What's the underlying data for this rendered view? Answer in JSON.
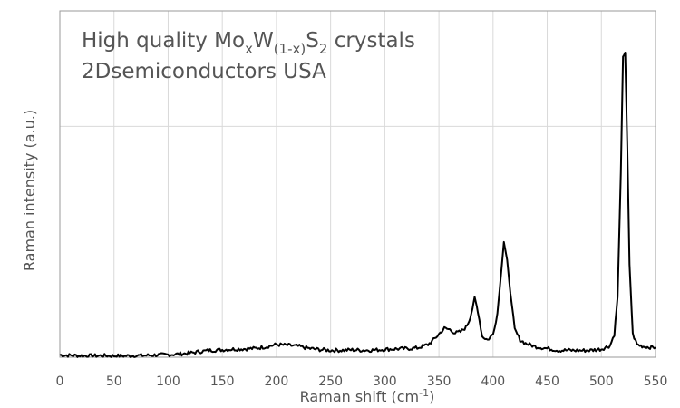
{
  "chart_data": {
    "type": "line",
    "title": {
      "line1": {
        "prefix": "High quality Mo",
        "sub1": "x",
        "mid1": "W",
        "sub2": "(1-x)",
        "mid2": "S",
        "sub3": "2",
        "suffix": " crystals"
      },
      "line2": "2Dsemiconductors USA"
    },
    "xlabel": "Raman shift (cm",
    "xlabel_sup": "-1",
    "xlabel_end": ")",
    "ylabel": "Raman intensity (a.u.)",
    "xlim": [
      0,
      550
    ],
    "ylim": [
      0,
      1.5
    ],
    "x_ticks": [
      "0",
      "50",
      "100",
      "150",
      "200",
      "250",
      "300",
      "350",
      "400",
      "450",
      "500",
      "550"
    ],
    "y_ticks_unlabeled": [
      0,
      1.0
    ],
    "grid": true,
    "line_color": "#000000",
    "series": [
      {
        "points": [
          [
            0,
            0.01
          ],
          [
            10,
            0.008
          ],
          [
            20,
            0.007
          ],
          [
            30,
            0.006
          ],
          [
            40,
            0.007
          ],
          [
            50,
            0.006
          ],
          [
            60,
            0.006
          ],
          [
            70,
            0.007
          ],
          [
            80,
            0.008
          ],
          [
            90,
            0.01
          ],
          [
            100,
            0.011
          ],
          [
            110,
            0.014
          ],
          [
            120,
            0.018
          ],
          [
            130,
            0.025
          ],
          [
            140,
            0.03
          ],
          [
            150,
            0.032
          ],
          [
            160,
            0.035
          ],
          [
            170,
            0.036
          ],
          [
            180,
            0.038
          ],
          [
            190,
            0.045
          ],
          [
            200,
            0.055
          ],
          [
            210,
            0.052
          ],
          [
            220,
            0.048
          ],
          [
            230,
            0.038
          ],
          [
            240,
            0.033
          ],
          [
            250,
            0.03
          ],
          [
            260,
            0.03
          ],
          [
            270,
            0.032
          ],
          [
            280,
            0.03
          ],
          [
            290,
            0.031
          ],
          [
            300,
            0.034
          ],
          [
            310,
            0.036
          ],
          [
            320,
            0.037
          ],
          [
            330,
            0.04
          ],
          [
            340,
            0.055
          ],
          [
            345,
            0.075
          ],
          [
            350,
            0.1
          ],
          [
            355,
            0.125
          ],
          [
            360,
            0.12
          ],
          [
            365,
            0.105
          ],
          [
            370,
            0.11
          ],
          [
            375,
            0.13
          ],
          [
            378,
            0.16
          ],
          [
            381,
            0.21
          ],
          [
            383,
            0.26
          ],
          [
            386,
            0.2
          ],
          [
            390,
            0.09
          ],
          [
            395,
            0.075
          ],
          [
            400,
            0.1
          ],
          [
            404,
            0.19
          ],
          [
            407,
            0.34
          ],
          [
            410,
            0.5
          ],
          [
            413,
            0.42
          ],
          [
            416,
            0.28
          ],
          [
            420,
            0.12
          ],
          [
            425,
            0.075
          ],
          [
            430,
            0.06
          ],
          [
            440,
            0.045
          ],
          [
            450,
            0.038
          ],
          [
            460,
            0.03
          ],
          [
            470,
            0.03
          ],
          [
            480,
            0.029
          ],
          [
            490,
            0.03
          ],
          [
            500,
            0.035
          ],
          [
            508,
            0.05
          ],
          [
            512,
            0.1
          ],
          [
            515,
            0.26
          ],
          [
            518,
            0.8
          ],
          [
            520,
            1.3
          ],
          [
            522,
            1.32
          ],
          [
            524,
            0.9
          ],
          [
            526,
            0.4
          ],
          [
            529,
            0.1
          ],
          [
            533,
            0.055
          ],
          [
            540,
            0.045
          ],
          [
            550,
            0.042
          ]
        ]
      }
    ]
  }
}
